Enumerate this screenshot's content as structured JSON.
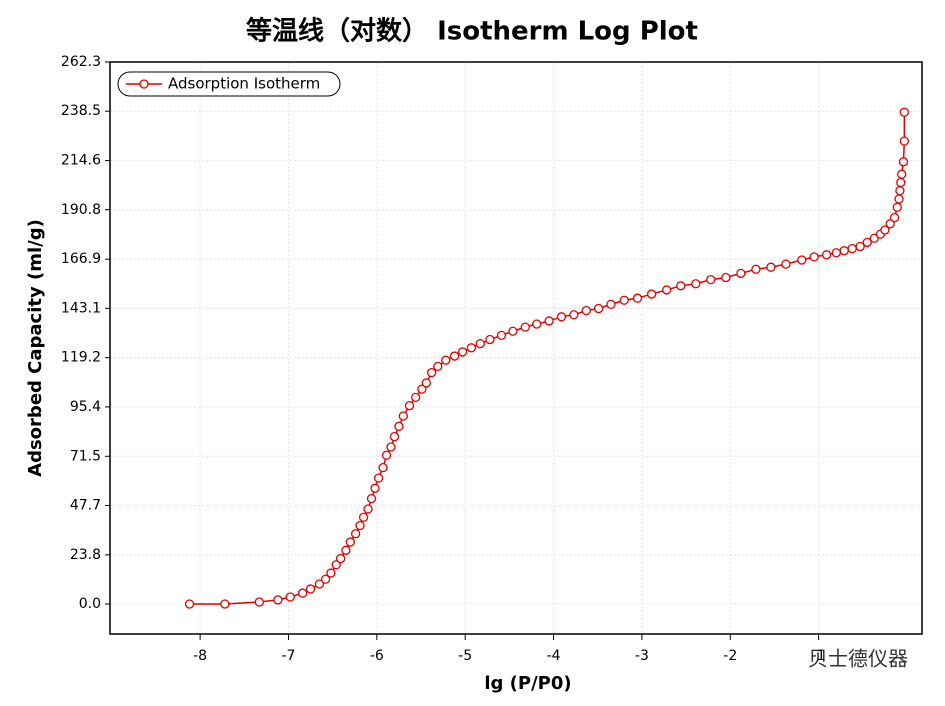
{
  "chart_data": {
    "type": "line",
    "title": "等温线（对数） Isotherm Log Plot",
    "x_label": "lg (P/P0)",
    "y_label": "Adsorbed Capacity (ml/g)",
    "watermark": "贝士德仪器",
    "xlim": [
      -9.02,
      0.17
    ],
    "ylim": [
      -14.5,
      262.3
    ],
    "xticks": [
      -8,
      -7,
      -6,
      -5,
      -4,
      -3,
      -2,
      -1
    ],
    "yticks": [
      {
        "value": 0,
        "label": "0.0"
      },
      23.8,
      47.7,
      71.5,
      95.4,
      119.2,
      143.1,
      166.9,
      190.8,
      214.6,
      238.5,
      262.3
    ],
    "grid": true,
    "legend": "upper left",
    "series": [
      {
        "name": "Adsorption Isotherm",
        "color": "#e00000",
        "x": [
          -8.12,
          -7.72,
          -7.33,
          -7.12,
          -6.98,
          -6.84,
          -6.75,
          -6.65,
          -6.58,
          -6.52,
          -6.46,
          -6.41,
          -6.35,
          -6.3,
          -6.24,
          -6.19,
          -6.15,
          -6.1,
          -6.06,
          -6.02,
          -5.98,
          -5.93,
          -5.89,
          -5.84,
          -5.8,
          -5.75,
          -5.7,
          -5.63,
          -5.56,
          -5.49,
          -5.44,
          -5.38,
          -5.31,
          -5.22,
          -5.12,
          -5.03,
          -4.93,
          -4.83,
          -4.72,
          -4.59,
          -4.46,
          -4.32,
          -4.19,
          -4.05,
          -3.91,
          -3.77,
          -3.63,
          -3.49,
          -3.35,
          -3.2,
          -3.05,
          -2.89,
          -2.72,
          -2.56,
          -2.39,
          -2.22,
          -2.05,
          -1.88,
          -1.71,
          -1.54,
          -1.37,
          -1.19,
          -1.05,
          -0.91,
          -0.8,
          -0.71,
          -0.62,
          -0.53,
          -0.45,
          -0.37,
          -0.3,
          -0.25,
          -0.19,
          -0.14,
          -0.11,
          -0.09,
          -0.08,
          -0.07,
          -0.06,
          -0.04,
          -0.03,
          -0.03
        ],
        "values": [
          0,
          0,
          1,
          2,
          3.4,
          5.3,
          7.3,
          9.7,
          12,
          15,
          19,
          22,
          26,
          30,
          34,
          38,
          42,
          46,
          51,
          56,
          61,
          66,
          72,
          76,
          81,
          86,
          91,
          96,
          100,
          104,
          107,
          112,
          115,
          118,
          120,
          122,
          124,
          126,
          128,
          130,
          132,
          134,
          135.5,
          137,
          139,
          140,
          142,
          143,
          145,
          147,
          148,
          150,
          152,
          154,
          155,
          157,
          158,
          160,
          162,
          163,
          164.5,
          166.5,
          168,
          169,
          170,
          171,
          172,
          173,
          175,
          177,
          179,
          181,
          184,
          187,
          192,
          196,
          200,
          204,
          208,
          214,
          224,
          238
        ]
      }
    ]
  }
}
